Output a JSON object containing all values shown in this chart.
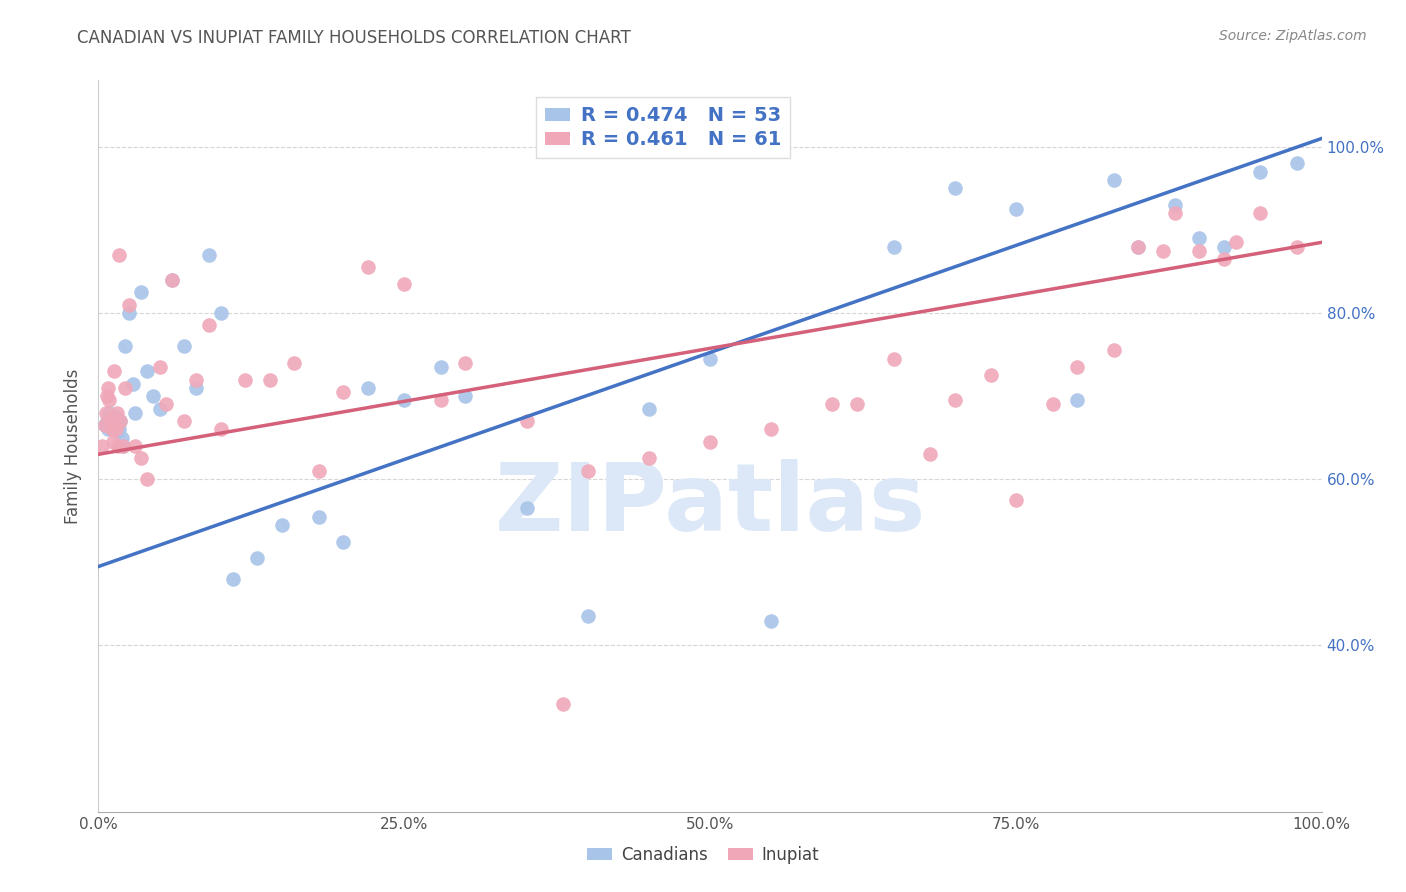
{
  "title": "CANADIAN VS INUPIAT FAMILY HOUSEHOLDS CORRELATION CHART",
  "source": "Source: ZipAtlas.com",
  "ylabel": "Family Households",
  "canadians_R": 0.474,
  "canadians_N": 53,
  "inupiat_R": 0.461,
  "inupiat_N": 61,
  "canadian_color": "#a8c4e8",
  "inupiat_color": "#f0a8b8",
  "canadian_line_color": "#4472c4",
  "inupiat_line_color": "#d4607a",
  "legend_text_color": "#4472c4",
  "title_color": "#555555",
  "source_color": "#888888",
  "background_color": "#ffffff",
  "watermark": "ZIPatlas",
  "watermark_color": "#dce8f8",
  "ytick_color": "#4472c4",
  "grid_color": "#cccccc",
  "xlim": [
    0,
    1
  ],
  "ylim": [
    0.2,
    1.08
  ],
  "xticks": [
    0,
    0.25,
    0.5,
    0.75,
    1.0
  ],
  "xticklabels": [
    "0.0%",
    "25.0%",
    "50.0%",
    "75.0%",
    "100.0%"
  ],
  "yticks": [
    0.4,
    0.6,
    0.8,
    1.0
  ],
  "yticklabels": [
    "40.0%",
    "60.0%",
    "80.0%",
    "100.0%"
  ],
  "can_line_x0": 0.0,
  "can_line_y0": 0.495,
  "can_line_x1": 1.0,
  "can_line_y1": 1.01,
  "inu_line_x0": 0.0,
  "inu_line_y0": 0.63,
  "inu_line_x1": 1.0,
  "inu_line_y1": 0.885,
  "canadians_x": [
    0.005,
    0.007,
    0.008,
    0.009,
    0.01,
    0.011,
    0.012,
    0.013,
    0.014,
    0.015,
    0.016,
    0.017,
    0.018,
    0.019,
    0.02,
    0.022,
    0.025,
    0.028,
    0.03,
    0.035,
    0.04,
    0.045,
    0.05,
    0.06,
    0.07,
    0.08,
    0.09,
    0.1,
    0.11,
    0.13,
    0.15,
    0.18,
    0.2,
    0.22,
    0.25,
    0.28,
    0.3,
    0.35,
    0.4,
    0.45,
    0.5,
    0.55,
    0.65,
    0.7,
    0.75,
    0.8,
    0.83,
    0.85,
    0.88,
    0.9,
    0.92,
    0.95,
    0.98
  ],
  "canadians_y": [
    0.665,
    0.67,
    0.66,
    0.68,
    0.665,
    0.672,
    0.668,
    0.66,
    0.675,
    0.665,
    0.658,
    0.66,
    0.67,
    0.65,
    0.64,
    0.76,
    0.8,
    0.715,
    0.68,
    0.825,
    0.73,
    0.7,
    0.685,
    0.84,
    0.76,
    0.71,
    0.87,
    0.8,
    0.48,
    0.505,
    0.545,
    0.555,
    0.525,
    0.71,
    0.695,
    0.735,
    0.7,
    0.565,
    0.435,
    0.685,
    0.745,
    0.43,
    0.88,
    0.95,
    0.925,
    0.695,
    0.96,
    0.88,
    0.93,
    0.89,
    0.88,
    0.97,
    0.98
  ],
  "inupiat_x": [
    0.003,
    0.005,
    0.006,
    0.007,
    0.008,
    0.009,
    0.01,
    0.011,
    0.012,
    0.013,
    0.014,
    0.015,
    0.016,
    0.017,
    0.018,
    0.02,
    0.022,
    0.025,
    0.03,
    0.035,
    0.04,
    0.05,
    0.055,
    0.06,
    0.07,
    0.08,
    0.09,
    0.1,
    0.12,
    0.14,
    0.16,
    0.18,
    0.2,
    0.22,
    0.25,
    0.28,
    0.3,
    0.35,
    0.38,
    0.4,
    0.45,
    0.5,
    0.55,
    0.6,
    0.62,
    0.65,
    0.68,
    0.7,
    0.73,
    0.75,
    0.78,
    0.8,
    0.83,
    0.85,
    0.87,
    0.88,
    0.9,
    0.92,
    0.93,
    0.95,
    0.98
  ],
  "inupiat_y": [
    0.64,
    0.665,
    0.68,
    0.7,
    0.71,
    0.695,
    0.67,
    0.66,
    0.645,
    0.73,
    0.66,
    0.68,
    0.64,
    0.87,
    0.67,
    0.64,
    0.71,
    0.81,
    0.64,
    0.625,
    0.6,
    0.735,
    0.69,
    0.84,
    0.67,
    0.72,
    0.785,
    0.66,
    0.72,
    0.72,
    0.74,
    0.61,
    0.705,
    0.855,
    0.835,
    0.695,
    0.74,
    0.67,
    0.33,
    0.61,
    0.625,
    0.645,
    0.66,
    0.69,
    0.69,
    0.745,
    0.63,
    0.695,
    0.725,
    0.575,
    0.69,
    0.735,
    0.755,
    0.88,
    0.875,
    0.92,
    0.875,
    0.865,
    0.885,
    0.92,
    0.88
  ]
}
